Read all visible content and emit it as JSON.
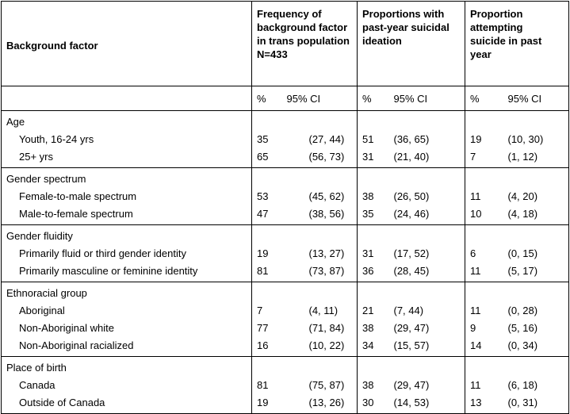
{
  "header": {
    "background_factor": "Background factor",
    "col1_title": "Frequency of background factor in trans population",
    "col1_n": "N=433",
    "col2_title": "Proportions with past-year suicidal ideation",
    "col3_title": "Proportion attempting suicide in past year",
    "pct": "%",
    "ci": "95% CI"
  },
  "groups": [
    {
      "title": "Age",
      "rows": [
        {
          "label": "Youth, 16-24 yrs",
          "c1p": "35",
          "c1ci": "(27, 44)",
          "c2p": "51",
          "c2ci": "(36, 65)",
          "c3p": "19",
          "c3ci": "(10, 30)"
        },
        {
          "label": "25+ yrs",
          "c1p": "65",
          "c1ci": "(56, 73)",
          "c2p": "31",
          "c2ci": "(21, 40)",
          "c3p": "7",
          "c3ci": "(1, 12)"
        }
      ]
    },
    {
      "title": "Gender spectrum",
      "rows": [
        {
          "label": "Female-to-male spectrum",
          "c1p": "53",
          "c1ci": "(45, 62)",
          "c2p": "38",
          "c2ci": "(26, 50)",
          "c3p": "11",
          "c3ci": "(4, 20)"
        },
        {
          "label": "Male-to-female spectrum",
          "c1p": "47",
          "c1ci": "(38, 56)",
          "c2p": "35",
          "c2ci": "(24, 46)",
          "c3p": "10",
          "c3ci": "(4, 18)"
        }
      ]
    },
    {
      "title": "Gender fluidity",
      "rows": [
        {
          "label": "Primarily fluid or third gender identity",
          "c1p": "19",
          "c1ci": "(13, 27)",
          "c2p": "31",
          "c2ci": "(17, 52)",
          "c3p": "6",
          "c3ci": "(0, 15)"
        },
        {
          "label": "Primarily masculine or feminine identity",
          "c1p": "81",
          "c1ci": "(73, 87)",
          "c2p": "36",
          "c2ci": "(28, 45)",
          "c3p": "11",
          "c3ci": "(5, 17)"
        }
      ]
    },
    {
      "title": "Ethnoracial group",
      "rows": [
        {
          "label": "Aboriginal",
          "c1p": "7",
          "c1ci": "(4, 11)",
          "c2p": "21",
          "c2ci": "(7, 44)",
          "c3p": "11",
          "c3ci": "(0, 28)"
        },
        {
          "label": "Non-Aboriginal white",
          "c1p": "77",
          "c1ci": "(71, 84)",
          "c2p": "38",
          "c2ci": "(29, 47)",
          "c3p": "9",
          "c3ci": "(5, 16)"
        },
        {
          "label": "Non-Aboriginal racialized",
          "c1p": "16",
          "c1ci": "(10, 22)",
          "c2p": "34",
          "c2ci": "(15, 57)",
          "c3p": "14",
          "c3ci": "(0, 34)"
        }
      ]
    },
    {
      "title": "Place of birth",
      "rows": [
        {
          "label": "Canada",
          "c1p": "81",
          "c1ci": "(75, 87)",
          "c2p": "38",
          "c2ci": "(29, 47)",
          "c3p": "11",
          "c3ci": "(6, 18)"
        },
        {
          "label": "Outside of Canada",
          "c1p": "19",
          "c1ci": "(13, 26)",
          "c2p": "30",
          "c2ci": "(14, 53)",
          "c3p": "13",
          "c3ci": "(0, 31)"
        }
      ]
    }
  ]
}
